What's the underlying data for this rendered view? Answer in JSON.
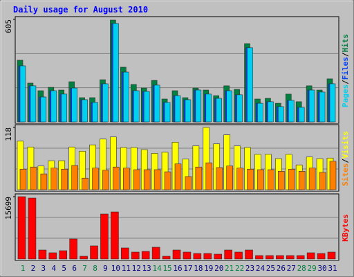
{
  "chart_data": [
    {
      "type": "bar",
      "title": "Daily usage for August 2010",
      "ylim": [
        0,
        605
      ],
      "yticks": [
        605
      ],
      "grid": true,
      "legend_separator": "/",
      "series": [
        {
          "name": "Hits",
          "color": "#008040",
          "values": [
            364,
            229,
            184,
            204,
            188,
            237,
            143,
            143,
            249,
            601,
            323,
            221,
            200,
            245,
            135,
            184,
            143,
            200,
            188,
            155,
            213,
            192,
            462,
            135,
            139,
            110,
            164,
            119,
            213,
            188,
            254
          ]
        },
        {
          "name": "Files",
          "color": "#0040ff",
          "values": [
            331,
            213,
            147,
            184,
            164,
            200,
            131,
            115,
            225,
            581,
            294,
            184,
            180,
            217,
            115,
            155,
            131,
            188,
            164,
            139,
            184,
            160,
            438,
            110,
            119,
            90,
            127,
            86,
            188,
            176,
            225
          ]
        },
        {
          "name": "Pages",
          "color": "#00d0f0",
          "values": [
            331,
            213,
            147,
            184,
            164,
            200,
            131,
            115,
            225,
            581,
            294,
            184,
            180,
            217,
            115,
            155,
            131,
            188,
            164,
            139,
            184,
            160,
            438,
            110,
            119,
            90,
            127,
            86,
            188,
            176,
            225
          ]
        }
      ]
    },
    {
      "type": "bar",
      "ylim": [
        0,
        118
      ],
      "yticks": [
        118
      ],
      "grid": true,
      "legend_separator": "/",
      "series": [
        {
          "name": "Visits",
          "color": "#ffff00",
          "values": [
            92,
            81,
            45,
            55,
            55,
            81,
            73,
            85,
            96,
            100,
            80,
            80,
            76,
            69,
            71,
            90,
            58,
            83,
            118,
            87,
            104,
            83,
            80,
            67,
            67,
            59,
            67,
            47,
            62,
            59,
            60
          ]
        },
        {
          "name": "Sites",
          "color": "#ff8000",
          "values": [
            39,
            43,
            30,
            41,
            39,
            46,
            22,
            41,
            37,
            43,
            41,
            38,
            38,
            38,
            34,
            49,
            25,
            43,
            51,
            42,
            45,
            41,
            39,
            38,
            38,
            35,
            39,
            35,
            41,
            33,
            54
          ]
        }
      ]
    },
    {
      "type": "bar",
      "ylim": [
        0,
        15699
      ],
      "yticks": [
        15699
      ],
      "grid": true,
      "categories": [
        "1",
        "2",
        "3",
        "4",
        "5",
        "6",
        "7",
        "8",
        "9",
        "10",
        "11",
        "12",
        "13",
        "14",
        "15",
        "16",
        "17",
        "18",
        "19",
        "20",
        "21",
        "22",
        "23",
        "24",
        "25",
        "26",
        "27",
        "28",
        "29",
        "30",
        "31"
      ],
      "category_colors": [
        "#008040",
        "#000080",
        "#000080",
        "#000080",
        "#000080",
        "#000080",
        "#008040",
        "#008040",
        "#000080",
        "#000080",
        "#000080",
        "#000080",
        "#000080",
        "#008040",
        "#008040",
        "#000080",
        "#000080",
        "#000080",
        "#000080",
        "#000080",
        "#008040",
        "#008040",
        "#000080",
        "#000080",
        "#000080",
        "#000080",
        "#000080",
        "#008040",
        "#008040",
        "#000080",
        "#000080"
      ],
      "series": [
        {
          "name": "KBytes",
          "color": "#ff0000",
          "values": [
            15699,
            15350,
            2267,
            1570,
            2093,
            5058,
            698,
            3314,
            11336,
            11859,
            2791,
            1744,
            1918,
            2965,
            698,
            2267,
            1744,
            1395,
            1395,
            1221,
            2267,
            1744,
            2267,
            872,
            872,
            872,
            872,
            872,
            1570,
            1395,
            1744
          ]
        }
      ]
    }
  ]
}
